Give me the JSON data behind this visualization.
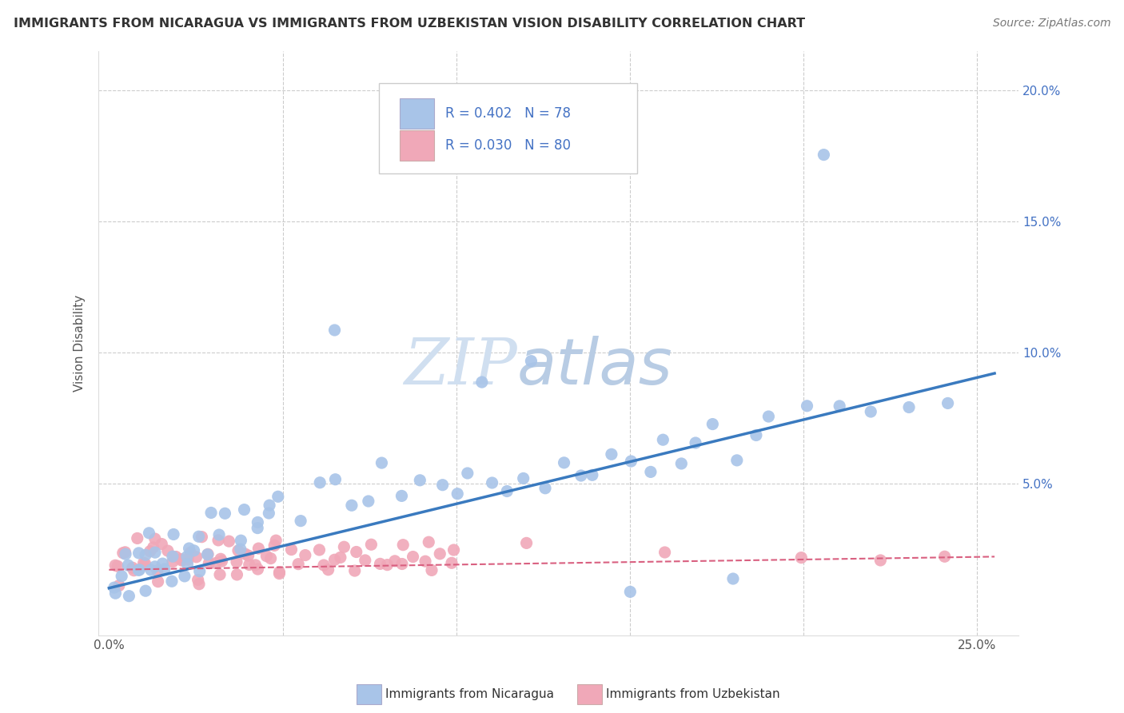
{
  "title": "IMMIGRANTS FROM NICARAGUA VS IMMIGRANTS FROM UZBEKISTAN VISION DISABILITY CORRELATION CHART",
  "source": "Source: ZipAtlas.com",
  "ylabel": "Vision Disability",
  "xlim": [
    -0.003,
    0.262
  ],
  "ylim": [
    -0.008,
    0.215
  ],
  "nicaragua_color": "#a8c4e8",
  "uzbekistan_color": "#f0a8b8",
  "nicaragua_line_color": "#3a7abf",
  "uzbekistan_line_color": "#d96080",
  "nicaragua_R": 0.402,
  "nicaragua_N": 78,
  "uzbekistan_R": 0.03,
  "uzbekistan_N": 80,
  "legend_label_nicaragua": "Immigrants from Nicaragua",
  "legend_label_uzbekistan": "Immigrants from Uzbekistan",
  "watermark_zip": "ZIP",
  "watermark_atlas": "atlas",
  "nic_x": [
    0.001,
    0.002,
    0.003,
    0.004,
    0.005,
    0.006,
    0.007,
    0.008,
    0.009,
    0.01,
    0.011,
    0.012,
    0.013,
    0.014,
    0.015,
    0.016,
    0.017,
    0.018,
    0.019,
    0.02,
    0.021,
    0.022,
    0.023,
    0.024,
    0.025,
    0.026,
    0.027,
    0.028,
    0.03,
    0.032,
    0.034,
    0.036,
    0.038,
    0.04,
    0.042,
    0.044,
    0.046,
    0.048,
    0.05,
    0.055,
    0.06,
    0.065,
    0.07,
    0.075,
    0.08,
    0.085,
    0.09,
    0.095,
    0.1,
    0.105,
    0.11,
    0.115,
    0.12,
    0.125,
    0.13,
    0.135,
    0.14,
    0.145,
    0.15,
    0.155,
    0.16,
    0.165,
    0.17,
    0.175,
    0.18,
    0.185,
    0.19,
    0.2,
    0.21,
    0.22,
    0.23,
    0.24,
    0.065,
    0.12,
    0.11,
    0.205,
    0.15,
    0.18
  ],
  "nic_y": [
    0.01,
    0.012,
    0.015,
    0.018,
    0.02,
    0.008,
    0.025,
    0.018,
    0.015,
    0.022,
    0.01,
    0.03,
    0.018,
    0.015,
    0.025,
    0.02,
    0.018,
    0.025,
    0.012,
    0.03,
    0.022,
    0.015,
    0.028,
    0.02,
    0.025,
    0.018,
    0.03,
    0.022,
    0.035,
    0.03,
    0.038,
    0.025,
    0.032,
    0.04,
    0.035,
    0.028,
    0.042,
    0.038,
    0.045,
    0.038,
    0.048,
    0.05,
    0.04,
    0.045,
    0.055,
    0.048,
    0.05,
    0.045,
    0.048,
    0.055,
    0.05,
    0.048,
    0.055,
    0.048,
    0.06,
    0.052,
    0.055,
    0.058,
    0.06,
    0.055,
    0.065,
    0.06,
    0.065,
    0.07,
    0.062,
    0.068,
    0.075,
    0.078,
    0.082,
    0.08,
    0.078,
    0.08,
    0.108,
    0.096,
    0.09,
    0.175,
    0.008,
    0.015
  ],
  "uzb_x": [
    0.001,
    0.002,
    0.003,
    0.004,
    0.005,
    0.006,
    0.007,
    0.008,
    0.009,
    0.01,
    0.011,
    0.012,
    0.013,
    0.014,
    0.015,
    0.016,
    0.017,
    0.018,
    0.019,
    0.02,
    0.021,
    0.022,
    0.023,
    0.024,
    0.025,
    0.026,
    0.027,
    0.028,
    0.029,
    0.03,
    0.031,
    0.032,
    0.033,
    0.034,
    0.035,
    0.036,
    0.037,
    0.038,
    0.039,
    0.04,
    0.041,
    0.042,
    0.043,
    0.044,
    0.045,
    0.046,
    0.047,
    0.048,
    0.049,
    0.05,
    0.052,
    0.054,
    0.056,
    0.058,
    0.06,
    0.062,
    0.064,
    0.066,
    0.068,
    0.07,
    0.072,
    0.074,
    0.076,
    0.078,
    0.08,
    0.082,
    0.084,
    0.086,
    0.088,
    0.09,
    0.092,
    0.094,
    0.096,
    0.098,
    0.1,
    0.12,
    0.16,
    0.2,
    0.22,
    0.24
  ],
  "uzb_y": [
    0.015,
    0.018,
    0.02,
    0.022,
    0.025,
    0.018,
    0.028,
    0.015,
    0.022,
    0.02,
    0.025,
    0.018,
    0.022,
    0.028,
    0.015,
    0.025,
    0.02,
    0.018,
    0.025,
    0.022,
    0.018,
    0.025,
    0.02,
    0.028,
    0.015,
    0.022,
    0.018,
    0.025,
    0.02,
    0.022,
    0.025,
    0.018,
    0.022,
    0.02,
    0.025,
    0.018,
    0.022,
    0.02,
    0.025,
    0.018,
    0.022,
    0.02,
    0.025,
    0.018,
    0.022,
    0.02,
    0.025,
    0.018,
    0.022,
    0.02,
    0.025,
    0.018,
    0.022,
    0.02,
    0.025,
    0.018,
    0.022,
    0.02,
    0.025,
    0.018,
    0.022,
    0.02,
    0.025,
    0.018,
    0.022,
    0.02,
    0.025,
    0.018,
    0.022,
    0.02,
    0.025,
    0.018,
    0.022,
    0.02,
    0.025,
    0.025,
    0.022,
    0.02,
    0.018,
    0.022
  ]
}
